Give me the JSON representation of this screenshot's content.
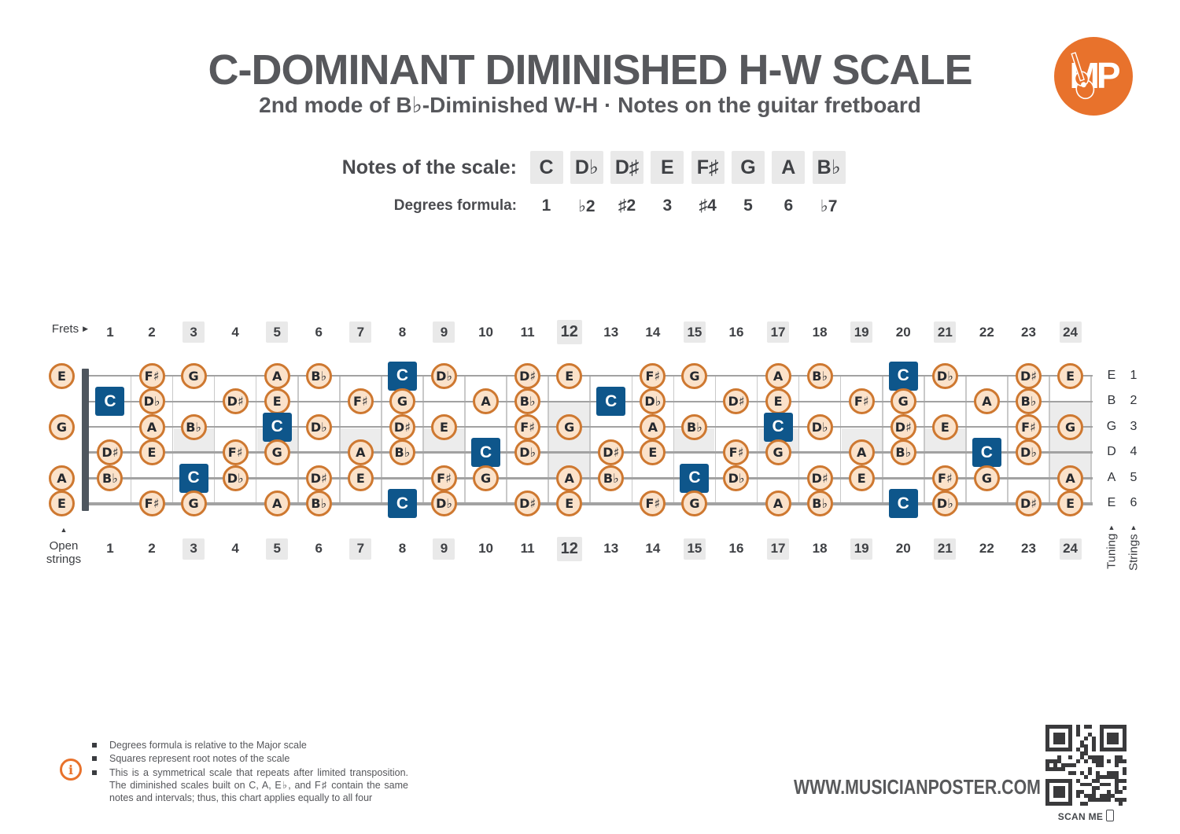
{
  "header": {
    "title": "C-DOMINANT DIMINISHED H-W SCALE",
    "subtitle": "2nd mode of B♭-Diminished W-H  ·  Notes on the guitar fretboard",
    "logo_text": "MP"
  },
  "scale": {
    "notes_label": "Notes of the scale:",
    "notes": [
      "C",
      "D♭",
      "D♯",
      "E",
      "F♯",
      "G",
      "A",
      "B♭"
    ],
    "degrees_label": "Degrees formula:",
    "degrees": [
      "1",
      "♭2",
      "♯2",
      "3",
      "♯4",
      "5",
      "6",
      "♭7"
    ]
  },
  "fretboard": {
    "frets_label": "Frets",
    "open_strings_label": "Open strings",
    "tuning_label": "Tuning",
    "strings_label": "Strings",
    "fret_numbers": [
      1,
      2,
      3,
      4,
      5,
      6,
      7,
      8,
      9,
      10,
      11,
      12,
      13,
      14,
      15,
      16,
      17,
      18,
      19,
      20,
      21,
      22,
      23,
      24
    ],
    "shaded_number_frets": [
      3,
      5,
      7,
      9,
      12,
      15,
      17,
      19,
      21,
      24
    ],
    "bold_number_frets": [
      12
    ],
    "marker_frets_single": [
      3,
      5,
      7,
      9,
      15,
      17,
      19,
      21
    ],
    "marker_frets_double": [
      12,
      24
    ],
    "root_note": "C",
    "strings": [
      {
        "number": 1,
        "tuning": "E",
        "open": "E",
        "notes": [
          [
            2,
            "F♯"
          ],
          [
            3,
            "G"
          ],
          [
            5,
            "A"
          ],
          [
            6,
            "B♭"
          ],
          [
            8,
            "C"
          ],
          [
            9,
            "D♭"
          ],
          [
            11,
            "D♯"
          ],
          [
            12,
            "E"
          ],
          [
            14,
            "F♯"
          ],
          [
            15,
            "G"
          ],
          [
            17,
            "A"
          ],
          [
            18,
            "B♭"
          ],
          [
            20,
            "C"
          ],
          [
            21,
            "D♭"
          ],
          [
            23,
            "D♯"
          ],
          [
            24,
            "E"
          ]
        ]
      },
      {
        "number": 2,
        "tuning": "B",
        "open": null,
        "notes": [
          [
            1,
            "C"
          ],
          [
            2,
            "D♭"
          ],
          [
            4,
            "D♯"
          ],
          [
            5,
            "E"
          ],
          [
            7,
            "F♯"
          ],
          [
            8,
            "G"
          ],
          [
            10,
            "A"
          ],
          [
            11,
            "B♭"
          ],
          [
            13,
            "C"
          ],
          [
            14,
            "D♭"
          ],
          [
            16,
            "D♯"
          ],
          [
            17,
            "E"
          ],
          [
            19,
            "F♯"
          ],
          [
            20,
            "G"
          ],
          [
            22,
            "A"
          ],
          [
            23,
            "B♭"
          ]
        ]
      },
      {
        "number": 3,
        "tuning": "G",
        "open": "G",
        "notes": [
          [
            2,
            "A"
          ],
          [
            3,
            "B♭"
          ],
          [
            5,
            "C"
          ],
          [
            6,
            "D♭"
          ],
          [
            8,
            "D♯"
          ],
          [
            9,
            "E"
          ],
          [
            11,
            "F♯"
          ],
          [
            12,
            "G"
          ],
          [
            14,
            "A"
          ],
          [
            15,
            "B♭"
          ],
          [
            17,
            "C"
          ],
          [
            18,
            "D♭"
          ],
          [
            20,
            "D♯"
          ],
          [
            21,
            "E"
          ],
          [
            23,
            "F♯"
          ],
          [
            24,
            "G"
          ]
        ]
      },
      {
        "number": 4,
        "tuning": "D",
        "open": null,
        "notes": [
          [
            1,
            "D♯"
          ],
          [
            2,
            "E"
          ],
          [
            4,
            "F♯"
          ],
          [
            5,
            "G"
          ],
          [
            7,
            "A"
          ],
          [
            8,
            "B♭"
          ],
          [
            10,
            "C"
          ],
          [
            11,
            "D♭"
          ],
          [
            13,
            "D♯"
          ],
          [
            14,
            "E"
          ],
          [
            16,
            "F♯"
          ],
          [
            17,
            "G"
          ],
          [
            19,
            "A"
          ],
          [
            20,
            "B♭"
          ],
          [
            22,
            "C"
          ],
          [
            23,
            "D♭"
          ]
        ]
      },
      {
        "number": 5,
        "tuning": "A",
        "open": "A",
        "notes": [
          [
            1,
            "B♭"
          ],
          [
            3,
            "C"
          ],
          [
            4,
            "D♭"
          ],
          [
            6,
            "D♯"
          ],
          [
            7,
            "E"
          ],
          [
            9,
            "F♯"
          ],
          [
            10,
            "G"
          ],
          [
            12,
            "A"
          ],
          [
            13,
            "B♭"
          ],
          [
            15,
            "C"
          ],
          [
            16,
            "D♭"
          ],
          [
            18,
            "D♯"
          ],
          [
            19,
            "E"
          ],
          [
            21,
            "F♯"
          ],
          [
            22,
            "G"
          ],
          [
            24,
            "A"
          ]
        ]
      },
      {
        "number": 6,
        "tuning": "E",
        "open": "E",
        "notes": [
          [
            2,
            "F♯"
          ],
          [
            3,
            "G"
          ],
          [
            5,
            "A"
          ],
          [
            6,
            "B♭"
          ],
          [
            8,
            "C"
          ],
          [
            9,
            "D♭"
          ],
          [
            11,
            "D♯"
          ],
          [
            12,
            "E"
          ],
          [
            14,
            "F♯"
          ],
          [
            15,
            "G"
          ],
          [
            17,
            "A"
          ],
          [
            18,
            "B♭"
          ],
          [
            20,
            "C"
          ],
          [
            21,
            "D♭"
          ],
          [
            23,
            "D♯"
          ],
          [
            24,
            "E"
          ]
        ]
      }
    ]
  },
  "footer": {
    "notes": [
      "Degrees formula is relative to the Major scale",
      "Squares represent root notes of the scale",
      "This is a symmetrical scale that repeats after limited transposition. The diminished scales built on C, A, E♭, and F♯ contain the same notes and intervals; thus, this chart applies equally to all four"
    ],
    "website": "WWW.MUSICIANPOSTER.COM",
    "scan_me": "SCAN ME"
  },
  "colors": {
    "orange": "#E8722C",
    "circle_border": "#CE7830",
    "circle_fill": "#FBE2CA",
    "root_blue": "#0E568B",
    "chip_gray": "#E9E9E9",
    "marker_gray": "#ECECEC",
    "string_gray": "#A2A2A2",
    "wire_gray": "#C9C9C9",
    "nut_gray": "#4E565E",
    "title_gray": "#57585C"
  }
}
